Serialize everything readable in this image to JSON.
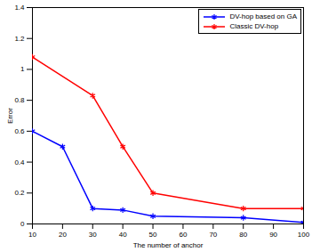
{
  "chart_data": {
    "type": "line",
    "x_label": "The number of anchor",
    "y_label": "Error",
    "xlim": [
      10,
      100
    ],
    "xticks": [
      10,
      20,
      30,
      40,
      50,
      60,
      70,
      80,
      90,
      100
    ],
    "ylim": [
      0,
      1.4
    ],
    "yticks": [
      0,
      0.2,
      0.4,
      0.6,
      0.8,
      1,
      1.2,
      1.4
    ],
    "grid": false,
    "legend": "upper right",
    "series": [
      {
        "name": "DV-hop based on GA",
        "color": "#0000ff",
        "marker": "asterisk",
        "line_style": "solid",
        "x": [
          10,
          20,
          30,
          40,
          50,
          80,
          100
        ],
        "values": [
          0.6,
          0.5,
          0.1,
          0.09,
          0.05,
          0.04,
          0.01
        ]
      },
      {
        "name": "Classic DV-hop",
        "color": "#ff0000",
        "marker": "asterisk",
        "line_style": "solid",
        "x": [
          10,
          30,
          40,
          50,
          80,
          100
        ],
        "values": [
          1.08,
          0.83,
          0.5,
          0.2,
          0.1,
          0.1
        ]
      }
    ]
  }
}
